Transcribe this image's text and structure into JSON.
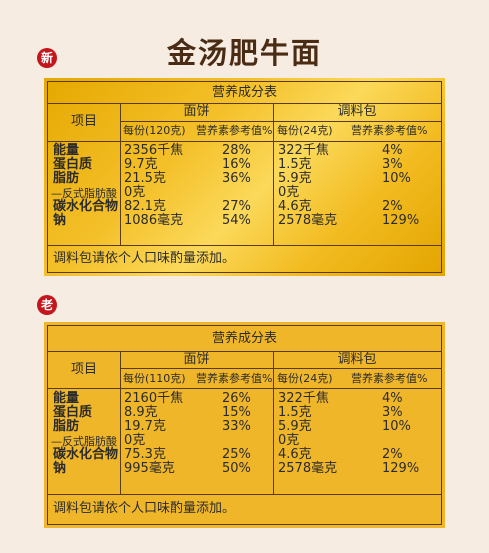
{
  "title": "金汤肥牛面",
  "badges": {
    "new": "新",
    "old": "老"
  },
  "panels": [
    {
      "heading": "营养成分表",
      "group1": "面饼",
      "group2": "调料包",
      "item_header": "项目",
      "sub": [
        "每份(120克)",
        "营养素参考值%",
        "每份(24克)",
        "营养素参考值%"
      ],
      "rows": [
        {
          "name": "能量",
          "a": "2356千焦",
          "b": "28%",
          "c": "322千焦",
          "d": "4%"
        },
        {
          "name": "蛋白质",
          "a": "9.7克",
          "b": "16%",
          "c": "1.5克",
          "d": "3%"
        },
        {
          "name": "脂肪",
          "a": "21.5克",
          "b": "36%",
          "c": "5.9克",
          "d": "10%"
        },
        {
          "name": "—反式脂肪酸",
          "a": "0克",
          "b": "",
          "c": "0克",
          "d": ""
        },
        {
          "name": "碳水化合物",
          "a": "82.1克",
          "b": "27%",
          "c": "4.6克",
          "d": "2%"
        },
        {
          "name": "钠",
          "a": "1086毫克",
          "b": "54%",
          "c": "2578毫克",
          "d": "129%"
        }
      ],
      "footer": "调料包请依个人口味酌量添加。"
    },
    {
      "heading": "营养成分表",
      "group1": "面饼",
      "group2": "调料包",
      "item_header": "项目",
      "sub": [
        "每份(110克)",
        "营养素参考值%",
        "每份(24克)",
        "营养素参考值%"
      ],
      "rows": [
        {
          "name": "能量",
          "a": "2160千焦",
          "b": "26%",
          "c": "322千焦",
          "d": "4%"
        },
        {
          "name": "蛋白质",
          "a": "8.9克",
          "b": "15%",
          "c": "1.5克",
          "d": "3%"
        },
        {
          "name": "脂肪",
          "a": "19.7克",
          "b": "33%",
          "c": "5.9克",
          "d": "10%"
        },
        {
          "name": "—反式脂肪酸",
          "a": "0克",
          "b": "",
          "c": "0克",
          "d": ""
        },
        {
          "name": "碳水化合物",
          "a": "75.3克",
          "b": "25%",
          "c": "4.6克",
          "d": "2%"
        },
        {
          "name": "钠",
          "a": "995毫克",
          "b": "50%",
          "c": "2578毫克",
          "d": "129%"
        }
      ],
      "footer": "调料包请依个人口味酌量添加。"
    }
  ]
}
